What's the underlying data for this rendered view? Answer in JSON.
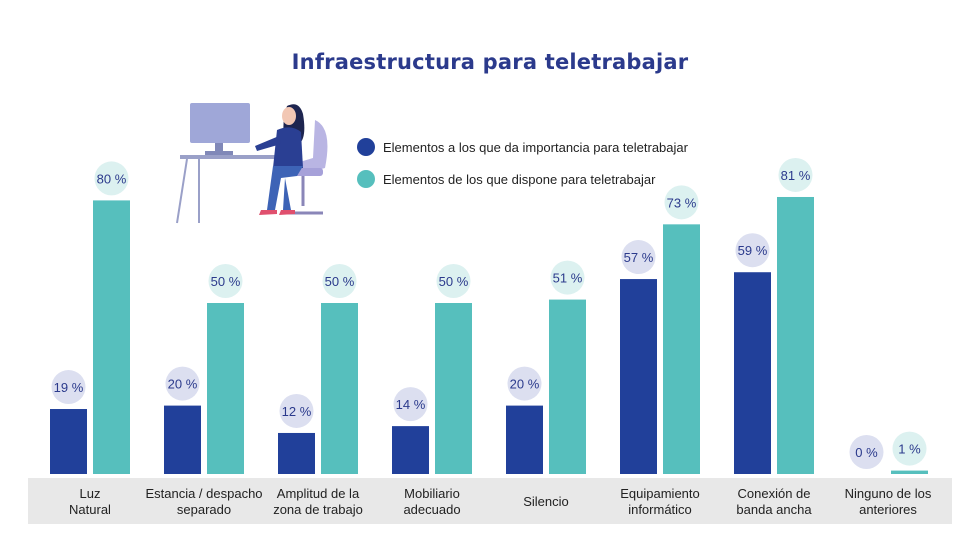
{
  "chart_data": {
    "type": "bar",
    "title": "Infraestructura para teletrabajar",
    "categories": [
      "Luz\nNatural",
      "Estancia / despacho\nseparado",
      "Amplitud de la\nzona de trabajo",
      "Mobiliario\nadecuado",
      "Silencio",
      "Equipamiento\ninformático",
      "Conexión de\nbanda ancha",
      "Ninguno de los\nanteriores"
    ],
    "series": [
      {
        "name": "Elementos a los que da importancia para teletrabajar",
        "values": [
          19,
          20,
          12,
          14,
          20,
          57,
          59,
          0
        ],
        "labels": [
          "19 %",
          "20 %",
          "12 %",
          "14 %",
          "20 %",
          "57 %",
          "59 %",
          "0 %"
        ],
        "color": "#21409a"
      },
      {
        "name": "Elementos de los que dispone para teletrabajar",
        "values": [
          80,
          50,
          50,
          50,
          51,
          73,
          81,
          1
        ],
        "labels": [
          "80 %",
          "50 %",
          "50 %",
          "50 %",
          "51 %",
          "73 %",
          "81 %",
          "1 %"
        ],
        "color": "#56bfbd"
      }
    ],
    "ylim": [
      0,
      100
    ],
    "legend_position": "top-center",
    "grid": false,
    "bubble_colors": {
      "importance": "#dcdff0",
      "available": "#dcf1f0"
    }
  }
}
